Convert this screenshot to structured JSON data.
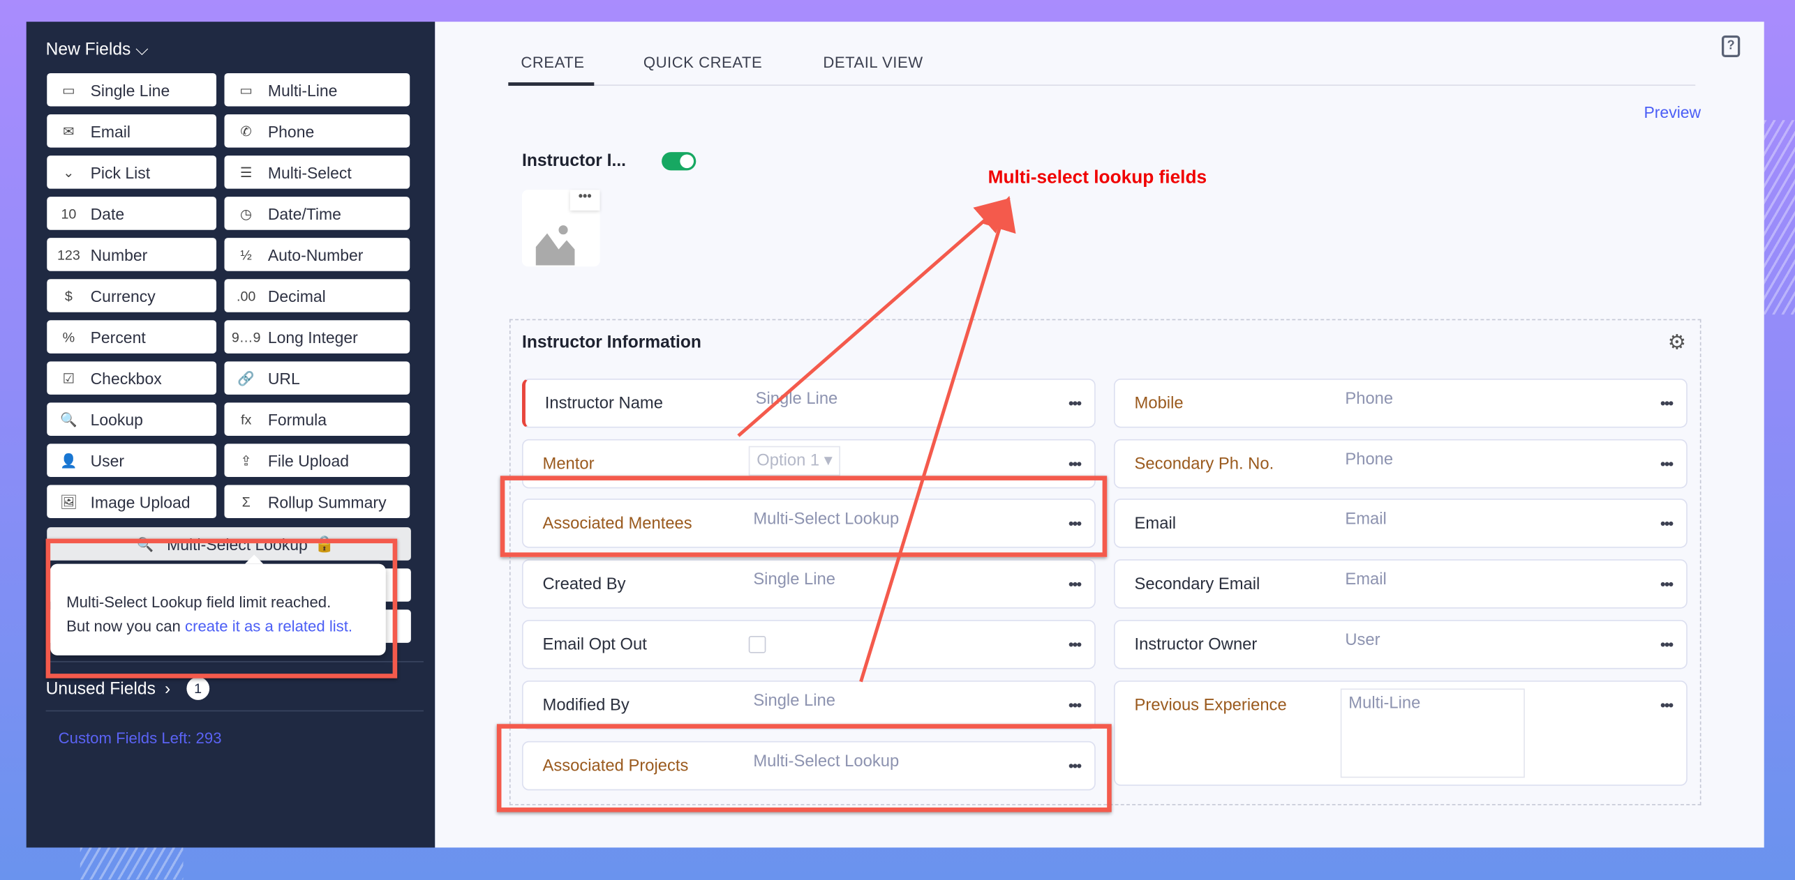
{
  "sidebar": {
    "header": "New Fields",
    "fields": [
      {
        "label": "Single Line",
        "icon": "single-line-icon",
        "glyph": "▭"
      },
      {
        "label": "Multi-Line",
        "icon": "multi-line-icon",
        "glyph": "▭"
      },
      {
        "label": "Email",
        "icon": "envelope-icon",
        "glyph": "✉"
      },
      {
        "label": "Phone",
        "icon": "phone-icon",
        "glyph": "✆"
      },
      {
        "label": "Pick List",
        "icon": "pick-list-icon",
        "glyph": "⌄"
      },
      {
        "label": "Multi-Select",
        "icon": "multi-select-icon",
        "glyph": "☰"
      },
      {
        "label": "Date",
        "icon": "calendar-icon",
        "glyph": "10"
      },
      {
        "label": "Date/Time",
        "icon": "date-time-icon",
        "glyph": "◷"
      },
      {
        "label": "Number",
        "icon": "number-icon",
        "glyph": "123"
      },
      {
        "label": "Auto-Number",
        "icon": "auto-number-icon",
        "glyph": "½"
      },
      {
        "label": "Currency",
        "icon": "dollar-icon",
        "glyph": "$"
      },
      {
        "label": "Decimal",
        "icon": "decimal-icon",
        "glyph": ".00"
      },
      {
        "label": "Percent",
        "icon": "percent-icon",
        "glyph": "%"
      },
      {
        "label": "Long Integer",
        "icon": "long-integer-icon",
        "glyph": "9…9"
      },
      {
        "label": "Checkbox",
        "icon": "checkbox-icon",
        "glyph": "☑"
      },
      {
        "label": "URL",
        "icon": "link-icon",
        "glyph": "🔗"
      },
      {
        "label": "Lookup",
        "icon": "lookup-icon",
        "glyph": "🔍"
      },
      {
        "label": "Formula",
        "icon": "formula-icon",
        "glyph": "fx"
      },
      {
        "label": "User",
        "icon": "user-icon",
        "glyph": "👤"
      },
      {
        "label": "File Upload",
        "icon": "upload-icon",
        "glyph": "⇪"
      },
      {
        "label": "Image Upload",
        "icon": "image-icon",
        "glyph": "🖼"
      },
      {
        "label": "Rollup Summary",
        "icon": "rollup-summary-icon",
        "glyph": "Σ"
      }
    ],
    "multi_select_lookup": "Multi-Select Lookup",
    "tooltip": {
      "line1": "Multi-Select Lookup field limit reached.",
      "line2": "But now you can ",
      "link": "create it as a related list."
    },
    "unused_fields": "Unused Fields",
    "unused_count": "1",
    "custom_fields_left": "Custom Fields Left: 293"
  },
  "tabs": [
    "CREATE",
    "QUICK CREATE",
    "DETAIL VIEW"
  ],
  "active_tab": "CREATE",
  "preview": "Preview",
  "layout_name": "Instructor I...",
  "layout_enabled": true,
  "annotation": "Multi-select lookup fields",
  "section": {
    "title": "Instructor Information",
    "left": [
      {
        "label": "Instructor Name",
        "type": "Single Line",
        "custom": false,
        "required": true
      },
      {
        "label": "Mentor",
        "type": "Option 1",
        "custom": true,
        "picklist": true
      },
      {
        "label": "Associated Mentees",
        "type": "Multi-Select Lookup",
        "custom": true
      },
      {
        "label": "Created By",
        "type": "Single Line",
        "custom": false
      },
      {
        "label": "Email Opt Out",
        "type": "",
        "custom": false,
        "checkbox": true
      },
      {
        "label": "Modified By",
        "type": "Single Line",
        "custom": false
      },
      {
        "label": "Associated Projects",
        "type": "Multi-Select Lookup",
        "custom": true
      }
    ],
    "right": [
      {
        "label": "Mobile",
        "type": "Phone",
        "custom": true
      },
      {
        "label": "Secondary Ph. No.",
        "type": "Phone",
        "custom": true
      },
      {
        "label": "Email",
        "type": "Email",
        "custom": false
      },
      {
        "label": "Secondary Email",
        "type": "Email",
        "custom": false
      },
      {
        "label": "Instructor Owner",
        "type": "User",
        "custom": false
      },
      {
        "label": "Previous Experience",
        "type": "Multi-Line",
        "custom": true,
        "multiline": true
      }
    ]
  },
  "colors": {
    "accent": "#4b5ef5",
    "annotation": "#ff0000",
    "highlight": "#f45a4c",
    "toggle": "#17a862",
    "custom_label": "#9a5a1e"
  }
}
